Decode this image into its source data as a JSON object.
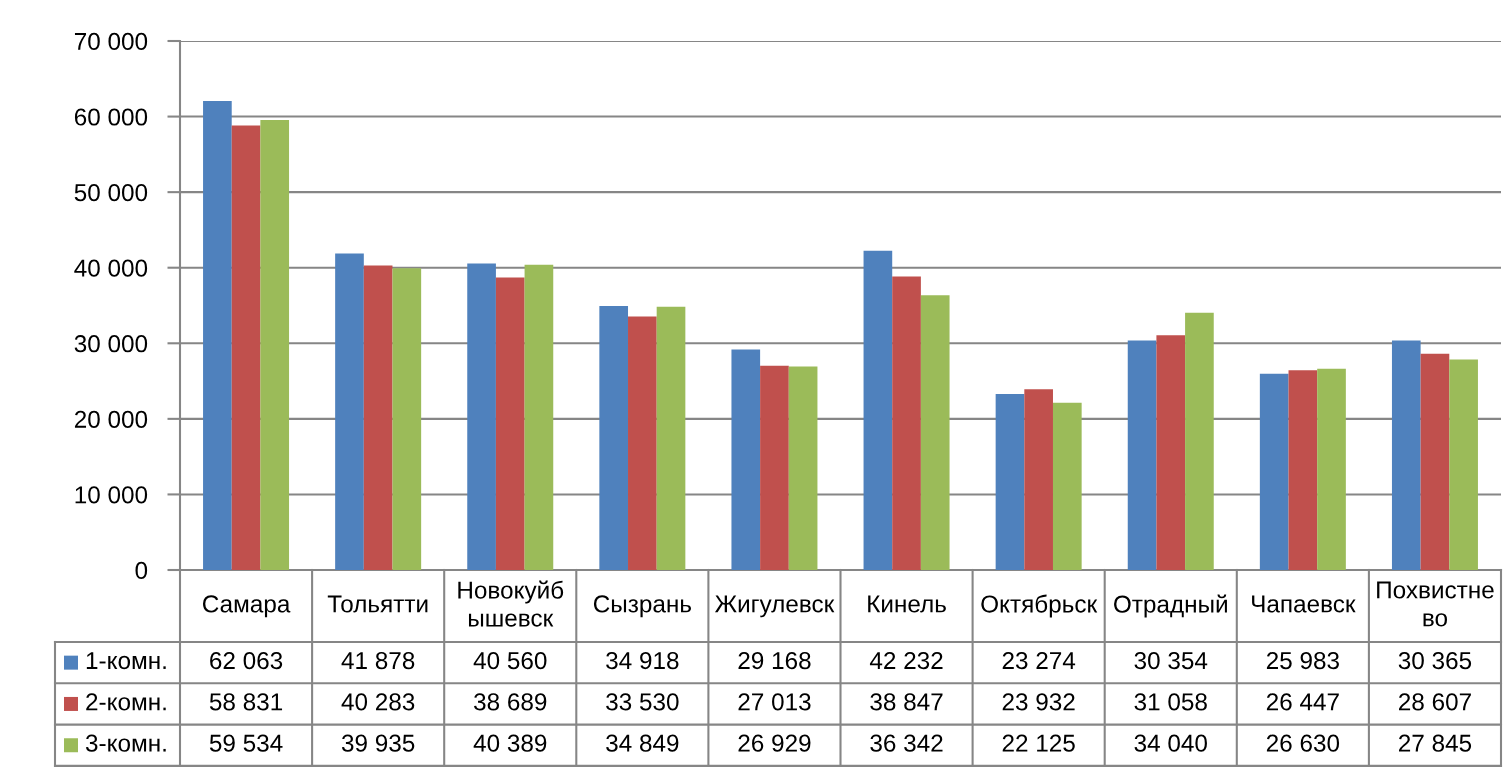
{
  "chart_data": {
    "type": "bar",
    "categories": [
      "Самара",
      "Тольятти",
      "Новокуйб\nышевск",
      "Сызрань",
      "Жигулевск",
      "Кинель",
      "Октябрьск",
      "Отрадный",
      "Чапаевск",
      "Похвистне\nво"
    ],
    "series": [
      {
        "name": "1-комн.",
        "color": "#4f81bd",
        "values": [
          62063,
          41878,
          40560,
          34918,
          29168,
          42232,
          23274,
          30354,
          25983,
          30365
        ],
        "value_labels": [
          "62 063",
          "41 878",
          "40 560",
          "34 918",
          "29 168",
          "42 232",
          "23 274",
          "30 354",
          "25 983",
          "30 365"
        ]
      },
      {
        "name": "2-комн.",
        "color": "#c0504d",
        "values": [
          58831,
          40283,
          38689,
          33530,
          27013,
          38847,
          23932,
          31058,
          26447,
          28607
        ],
        "value_labels": [
          "58 831",
          "40 283",
          "38 689",
          "33 530",
          "27 013",
          "38 847",
          "23 932",
          "31 058",
          "26 447",
          "28 607"
        ]
      },
      {
        "name": "3-комн.",
        "color": "#9bbb59",
        "values": [
          59534,
          39935,
          40389,
          34849,
          26929,
          36342,
          22125,
          34040,
          26630,
          27845
        ],
        "value_labels": [
          "59 534",
          "39 935",
          "40 389",
          "34 849",
          "26 929",
          "36 342",
          "22 125",
          "34 040",
          "26 630",
          "27 845"
        ]
      }
    ],
    "ylim": [
      0,
      70000
    ],
    "yticks": [
      0,
      {
        "value": 10000,
        "label": "10 000"
      },
      {
        "value": 20000,
        "label": "20 000"
      },
      {
        "value": 30000,
        "label": "30 000"
      },
      {
        "value": 40000,
        "label": "40 000"
      },
      {
        "value": 50000,
        "label": "50 000"
      },
      {
        "value": 60000,
        "label": "60 000"
      },
      {
        "value": 70000,
        "label": "70 000"
      }
    ],
    "grid": "y",
    "legend": "bottom"
  }
}
